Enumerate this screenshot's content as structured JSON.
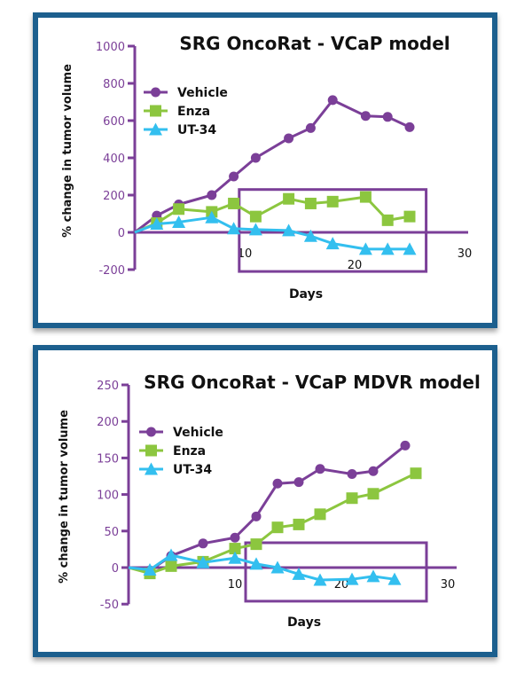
{
  "colors": {
    "frame": "#1a5e8e",
    "axis": "#7b3f98",
    "Vehicle": "#7b3f98",
    "Enza": "#8cc63f",
    "UT-34": "#33bfef"
  },
  "chart_data": [
    {
      "type": "line",
      "title": "SRG OncoRat - VCaP model",
      "xlabel": "Days",
      "ylabel": "% change in tumor volume",
      "xlim": [
        0,
        30
      ],
      "ylim": [
        -200,
        1000
      ],
      "xticks": [
        "10",
        "20",
        "30"
      ],
      "yticks": [
        "-200",
        "0",
        "200",
        "400",
        "600",
        "800",
        "1000"
      ],
      "grid": false,
      "legend": "top-left",
      "highlight_box": {
        "x": [
          9.5,
          26.5
        ],
        "y": [
          -210,
          230
        ]
      },
      "series": [
        {
          "name": "Vehicle",
          "marker": "circle",
          "x": [
            0,
            2,
            4,
            7,
            9,
            11,
            14,
            16,
            18,
            21,
            23,
            25
          ],
          "y": [
            0,
            90,
            150,
            200,
            300,
            400,
            505,
            560,
            710,
            625,
            620,
            565
          ]
        },
        {
          "name": "Enza",
          "marker": "square",
          "x": [
            0,
            2,
            4,
            7,
            9,
            11,
            14,
            16,
            18,
            21,
            23,
            25
          ],
          "y": [
            0,
            50,
            125,
            110,
            155,
            85,
            180,
            155,
            165,
            190,
            65,
            85
          ]
        },
        {
          "name": "UT-34",
          "marker": "triangle",
          "x": [
            0,
            2,
            4,
            7,
            9,
            11,
            14,
            16,
            18,
            21,
            23,
            25
          ],
          "y": [
            0,
            45,
            55,
            80,
            20,
            15,
            10,
            -20,
            -60,
            -90,
            -90,
            -90
          ]
        }
      ]
    },
    {
      "type": "line",
      "title": "SRG OncoRat - VCaP MDVR model",
      "xlabel": "Days",
      "ylabel": "% change in tumor volume",
      "xlim": [
        0,
        30
      ],
      "ylim": [
        -50,
        250
      ],
      "xticks": [
        "10",
        "20",
        "30"
      ],
      "yticks": [
        "-50",
        "0",
        "50",
        "100",
        "150",
        "200",
        "250"
      ],
      "grid": false,
      "legend": "top-left",
      "highlight_box": {
        "x": [
          11,
          28
        ],
        "y": [
          -46,
          34
        ]
      },
      "series": [
        {
          "name": "Vehicle",
          "marker": "circle",
          "x": [
            0,
            2,
            4,
            7,
            10,
            12,
            14,
            16,
            18,
            21,
            23,
            26
          ],
          "y": [
            0,
            -4,
            16,
            33,
            41,
            70,
            115,
            117,
            135,
            128,
            132,
            167
          ]
        },
        {
          "name": "Enza",
          "marker": "square",
          "x": [
            0,
            2,
            4,
            7,
            10,
            12,
            14,
            16,
            18,
            21,
            23,
            27
          ],
          "y": [
            0,
            -8,
            2,
            8,
            26,
            32,
            55,
            59,
            73,
            95,
            101,
            129
          ]
        },
        {
          "name": "UT-34",
          "marker": "triangle",
          "x": [
            0,
            2,
            4,
            7,
            10,
            12,
            14,
            16,
            18,
            21,
            23,
            25
          ],
          "y": [
            0,
            -3,
            17,
            7,
            13,
            5,
            0,
            -9,
            -17,
            -16,
            -12,
            -16
          ]
        }
      ]
    }
  ]
}
